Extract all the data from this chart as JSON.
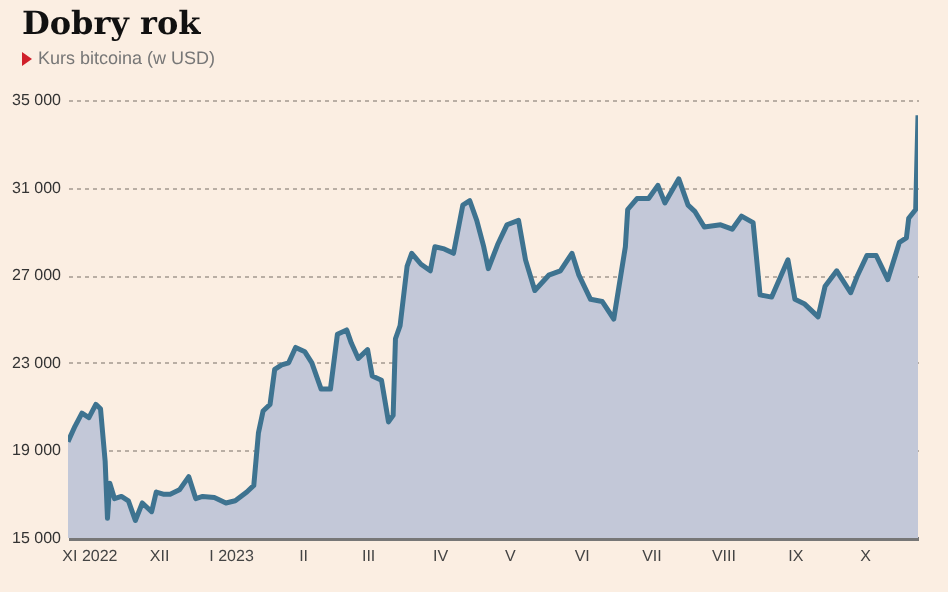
{
  "chart_data": {
    "type": "area",
    "title": "Dobry rok",
    "subtitle": "Kurs bitcoina (w USD)",
    "x": [
      "2022-10-23",
      "2022-10-26",
      "2022-10-29",
      "2022-11-01",
      "2022-11-04",
      "2022-11-06",
      "2022-11-08",
      "2022-11-09",
      "2022-11-10",
      "2022-11-12",
      "2022-11-15",
      "2022-11-18",
      "2022-11-21",
      "2022-11-24",
      "2022-11-28",
      "2022-11-30",
      "2022-12-03",
      "2022-12-06",
      "2022-12-10",
      "2022-12-14",
      "2022-12-17",
      "2022-12-20",
      "2022-12-25",
      "2022-12-30",
      "2023-01-03",
      "2023-01-08",
      "2023-01-11",
      "2023-01-13",
      "2023-01-15",
      "2023-01-18",
      "2023-01-20",
      "2023-01-23",
      "2023-01-26",
      "2023-01-29",
      "2023-02-02",
      "2023-02-05",
      "2023-02-09",
      "2023-02-13",
      "2023-02-16",
      "2023-02-20",
      "2023-02-22",
      "2023-02-25",
      "2023-03-01",
      "2023-03-03",
      "2023-03-07",
      "2023-03-10",
      "2023-03-12",
      "2023-03-13",
      "2023-03-15",
      "2023-03-18",
      "2023-03-20",
      "2023-03-24",
      "2023-03-28",
      "2023-03-30",
      "2023-04-03",
      "2023-04-07",
      "2023-04-11",
      "2023-04-14",
      "2023-04-17",
      "2023-04-20",
      "2023-04-22",
      "2023-04-26",
      "2023-04-30",
      "2023-05-05",
      "2023-05-08",
      "2023-05-12",
      "2023-05-18",
      "2023-05-23",
      "2023-05-28",
      "2023-05-31",
      "2023-06-05",
      "2023-06-10",
      "2023-06-15",
      "2023-06-20",
      "2023-06-21",
      "2023-06-25",
      "2023-06-30",
      "2023-07-04",
      "2023-07-07",
      "2023-07-13",
      "2023-07-17",
      "2023-07-20",
      "2023-07-24",
      "2023-07-31",
      "2023-08-05",
      "2023-08-09",
      "2023-08-14",
      "2023-08-17",
      "2023-08-22",
      "2023-08-29",
      "2023-09-01",
      "2023-09-05",
      "2023-09-11",
      "2023-09-14",
      "2023-09-19",
      "2023-09-25",
      "2023-09-28",
      "2023-10-02",
      "2023-10-06",
      "2023-10-11",
      "2023-10-16",
      "2023-10-19",
      "2023-10-20",
      "2023-10-23",
      "2023-10-24"
    ],
    "series": [
      {
        "color": "#3e7390",
        "values": [
          19400,
          20100,
          20700,
          20500,
          21100,
          20900,
          18500,
          15900,
          17500,
          16800,
          16900,
          16700,
          15800,
          16600,
          16200,
          17100,
          17000,
          17000,
          17200,
          17800,
          16800,
          16900,
          16850,
          16600,
          16700,
          17100,
          17400,
          19800,
          20800,
          21100,
          22700,
          22900,
          23000,
          23700,
          23500,
          23000,
          21800,
          21800,
          24300,
          24500,
          23900,
          23200,
          23600,
          22400,
          22200,
          20300,
          20600,
          24100,
          24700,
          27400,
          28000,
          27500,
          27200,
          28300,
          28200,
          28000,
          30200,
          30400,
          29500,
          28300,
          27300,
          28400,
          29300,
          29500,
          27700,
          26300,
          27000,
          27200,
          28000,
          27000,
          25900,
          25800,
          25000,
          28300,
          30000,
          30500,
          30500,
          31100,
          30300,
          31400,
          30200,
          29900,
          29200,
          29300,
          29100,
          29700,
          29400,
          26100,
          26000,
          27700,
          25900,
          25700,
          25100,
          26500,
          27200,
          26200,
          27000,
          27900,
          27900,
          26800,
          28500,
          28700,
          29600,
          30000,
          34300
        ]
      }
    ],
    "xlim": [
      "2022-10-23",
      "2023-10-24"
    ],
    "xticks": [
      {
        "value": "2022-11-01",
        "label": "XI 2022"
      },
      {
        "value": "2022-12-01",
        "label": "XII"
      },
      {
        "value": "2023-01-01",
        "label": "I 2023"
      },
      {
        "value": "2023-02-01",
        "label": "II"
      },
      {
        "value": "2023-03-01",
        "label": "III"
      },
      {
        "value": "2023-04-01",
        "label": "IV"
      },
      {
        "value": "2023-05-01",
        "label": "V"
      },
      {
        "value": "2023-06-01",
        "label": "VI"
      },
      {
        "value": "2023-07-01",
        "label": "VII"
      },
      {
        "value": "2023-08-01",
        "label": "VIII"
      },
      {
        "value": "2023-09-01",
        "label": "IX"
      },
      {
        "value": "2023-10-01",
        "label": "X"
      }
    ],
    "ylim": [
      15000,
      35000
    ],
    "yticks": [
      {
        "value": 15000,
        "label": "15 000"
      },
      {
        "value": 19000,
        "label": "19 000"
      },
      {
        "value": 23000,
        "label": "23 000"
      },
      {
        "value": 27000,
        "label": "27 000"
      },
      {
        "value": 31000,
        "label": "31 000"
      },
      {
        "value": 35000,
        "label": "35 000"
      }
    ],
    "grid": "y",
    "line_style": "solid"
  }
}
